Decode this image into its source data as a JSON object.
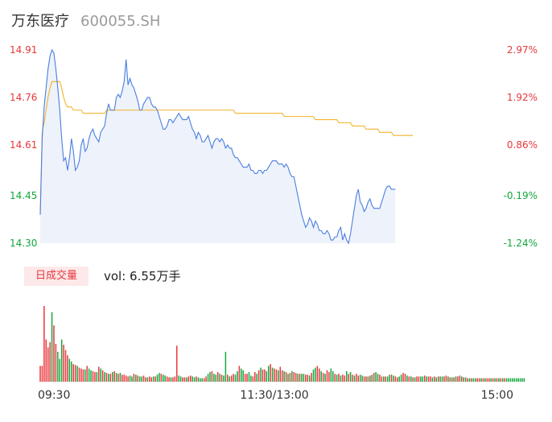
{
  "header": {
    "name": "万东医疗",
    "code": "600055.SH"
  },
  "colors": {
    "up": "#e8383d",
    "down": "#14a83b",
    "neutral": "#9a9a9a",
    "price_line": "#4a7fe0",
    "avg_line": "#f2b42b",
    "area_fill": "#eef2fb"
  },
  "volume_panel": {
    "badge": "日成交量",
    "summary": "vol: 6.55万手"
  },
  "chart_data": {
    "type": "line",
    "title": "",
    "prev_close": 14.5,
    "y_ticks": [
      "14.91",
      "14.76",
      "14.61",
      "14.45",
      "14.30"
    ],
    "y_right_ticks": [
      "2.97%",
      "1.92%",
      "0.86%",
      "-0.19%",
      "-1.24%"
    ],
    "ylim": [
      14.3,
      14.91
    ],
    "x_ticks": [
      "09:30",
      "11:30/13:00",
      "15:00"
    ],
    "x_tick_index": [
      0,
      120,
      240
    ],
    "n_minutes": 241,
    "series": [
      {
        "id": "price",
        "values": [
          14.39,
          14.63,
          14.73,
          14.79,
          14.85,
          14.89,
          14.91,
          14.9,
          14.85,
          14.79,
          14.72,
          14.63,
          14.56,
          14.57,
          14.53,
          14.57,
          14.63,
          14.59,
          14.53,
          14.54,
          14.56,
          14.61,
          14.63,
          14.59,
          14.6,
          14.63,
          14.65,
          14.66,
          14.64,
          14.63,
          14.62,
          14.65,
          14.66,
          14.67,
          14.71,
          14.74,
          14.72,
          14.72,
          14.72,
          14.76,
          14.77,
          14.76,
          14.78,
          14.81,
          14.88,
          14.8,
          14.82,
          14.8,
          14.79,
          14.77,
          14.75,
          14.72,
          14.72,
          14.74,
          14.75,
          14.76,
          14.76,
          14.74,
          14.73,
          14.73,
          14.72,
          14.7,
          14.68,
          14.66,
          14.66,
          14.67,
          14.69,
          14.69,
          14.68,
          14.69,
          14.7,
          14.71,
          14.7,
          14.69,
          14.69,
          14.69,
          14.7,
          14.68,
          14.66,
          14.65,
          14.63,
          14.65,
          14.64,
          14.62,
          14.62,
          14.63,
          14.64,
          14.62,
          14.6,
          14.62,
          14.63,
          14.63,
          14.62,
          14.63,
          14.62,
          14.6,
          14.61,
          14.6,
          14.6,
          14.58,
          14.57,
          14.57,
          14.56,
          14.55,
          14.54,
          14.54,
          14.54,
          14.55,
          14.53,
          14.53,
          14.52,
          14.52,
          14.53,
          14.53,
          14.52,
          14.53,
          14.53,
          14.54,
          14.55,
          14.56,
          14.56,
          14.56,
          14.55,
          14.55,
          14.55,
          14.54,
          14.55,
          14.54,
          14.52,
          14.51,
          14.51,
          14.48,
          14.45,
          14.42,
          14.39,
          14.37,
          14.35,
          14.36,
          14.38,
          14.37,
          14.35,
          14.37,
          14.36,
          14.34,
          14.34,
          14.33,
          14.33,
          14.34,
          14.33,
          14.31,
          14.31,
          14.32,
          14.32,
          14.34,
          14.35,
          14.31,
          14.33,
          14.31,
          14.3,
          14.33,
          14.37,
          14.41,
          14.45,
          14.47,
          14.43,
          14.42,
          14.4,
          14.41,
          14.43,
          14.44,
          14.42,
          14.41,
          14.41,
          14.41,
          14.41,
          14.43,
          14.45,
          14.47,
          14.48,
          14.48,
          14.47,
          14.47,
          14.47
        ],
        "color": "#4a7fe0"
      },
      {
        "id": "average",
        "values": [
          14.39,
          14.65,
          14.68,
          14.72,
          14.76,
          14.79,
          14.81,
          14.81,
          14.81,
          14.81,
          14.81,
          14.79,
          14.76,
          14.74,
          14.73,
          14.73,
          14.73,
          14.72,
          14.72,
          14.72,
          14.72,
          14.72,
          14.71,
          14.71,
          14.71,
          14.71,
          14.71,
          14.71,
          14.71,
          14.71,
          14.71,
          14.71,
          14.71,
          14.71,
          14.72,
          14.72,
          14.72,
          14.72,
          14.72,
          14.72,
          14.72,
          14.72,
          14.72,
          14.72,
          14.72,
          14.72,
          14.72,
          14.72,
          14.72,
          14.72,
          14.72,
          14.72,
          14.72,
          14.72,
          14.72,
          14.72,
          14.72,
          14.72,
          14.72,
          14.72,
          14.72,
          14.72,
          14.72,
          14.72,
          14.72,
          14.72,
          14.72,
          14.72,
          14.72,
          14.72,
          14.72,
          14.72,
          14.72,
          14.72,
          14.72,
          14.72,
          14.72,
          14.72,
          14.72,
          14.72,
          14.72,
          14.72,
          14.72,
          14.72,
          14.72,
          14.72,
          14.72,
          14.72,
          14.72,
          14.72,
          14.72,
          14.72,
          14.72,
          14.72,
          14.72,
          14.72,
          14.72,
          14.72,
          14.72,
          14.72,
          14.71,
          14.71,
          14.71,
          14.71,
          14.71,
          14.71,
          14.71,
          14.71,
          14.71,
          14.71,
          14.71,
          14.71,
          14.71,
          14.71,
          14.71,
          14.71,
          14.71,
          14.71,
          14.71,
          14.71,
          14.71,
          14.71,
          14.71,
          14.71,
          14.71,
          14.7,
          14.7,
          14.7,
          14.7,
          14.7,
          14.7,
          14.7,
          14.7,
          14.7,
          14.7,
          14.7,
          14.7,
          14.7,
          14.7,
          14.7,
          14.7,
          14.69,
          14.69,
          14.69,
          14.69,
          14.69,
          14.69,
          14.69,
          14.69,
          14.69,
          14.69,
          14.69,
          14.69,
          14.68,
          14.68,
          14.68,
          14.68,
          14.68,
          14.68,
          14.68,
          14.67,
          14.67,
          14.67,
          14.67,
          14.67,
          14.67,
          14.67,
          14.66,
          14.66,
          14.66,
          14.66,
          14.66,
          14.66,
          14.66,
          14.65,
          14.65,
          14.65,
          14.65,
          14.65,
          14.65,
          14.65,
          14.64,
          14.64,
          14.64,
          14.64,
          14.64,
          14.64,
          14.64,
          14.64,
          14.64,
          14.64,
          14.64
        ],
        "color": "#f2b42b"
      }
    ],
    "volume_unit": "手",
    "volume": {
      "values": [
        180,
        180,
        860,
        480,
        390,
        450,
        790,
        640,
        430,
        340,
        260,
        480,
        420,
        360,
        300,
        260,
        230,
        200,
        190,
        180,
        160,
        150,
        140,
        140,
        180,
        150,
        130,
        120,
        110,
        110,
        170,
        150,
        130,
        110,
        100,
        90,
        90,
        110,
        120,
        100,
        90,
        100,
        80,
        80,
        70,
        60,
        70,
        60,
        90,
        80,
        70,
        60,
        60,
        70,
        50,
        50,
        60,
        50,
        60,
        60,
        80,
        100,
        90,
        80,
        70,
        60,
        50,
        50,
        50,
        60,
        410,
        70,
        60,
        50,
        50,
        50,
        60,
        70,
        60,
        50,
        60,
        50,
        40,
        40,
        40,
        60,
        90,
        110,
        120,
        90,
        80,
        110,
        90,
        80,
        70,
        340,
        80,
        60,
        70,
        90,
        80,
        120,
        180,
        150,
        130,
        90,
        90,
        110,
        70,
        60,
        110,
        90,
        130,
        160,
        140,
        140,
        120,
        180,
        200,
        160,
        150,
        140,
        130,
        170,
        130,
        120,
        110,
        90,
        100,
        120,
        110,
        100,
        90,
        90,
        90,
        90,
        80,
        80,
        70,
        100,
        140,
        160,
        180,
        150,
        120,
        100,
        90,
        130,
        110,
        150,
        120,
        90,
        80,
        90,
        70,
        80,
        70,
        120,
        90,
        110,
        80,
        70,
        90,
        70,
        80,
        70,
        60,
        60,
        60,
        70,
        80,
        100,
        110,
        90,
        80,
        60,
        60,
        60,
        60,
        80,
        80,
        70,
        60,
        50,
        60,
        80,
        100,
        90,
        70,
        60,
        60,
        50,
        50,
        60,
        60,
        60,
        60,
        70,
        60,
        60,
        60,
        50,
        60,
        50,
        60,
        60,
        60,
        60,
        70,
        60,
        50,
        50,
        50,
        60,
        60,
        70,
        60,
        50,
        50,
        40,
        40,
        40,
        40,
        40,
        40,
        40,
        40,
        40,
        40,
        40,
        40,
        40,
        40,
        40,
        40,
        40,
        40,
        40,
        40,
        40,
        40,
        40,
        40,
        40,
        40,
        40,
        40,
        40,
        40
      ],
      "dir": [
        "u",
        "u",
        "u",
        "u",
        "u",
        "u",
        "d",
        "u",
        "u",
        "d",
        "d",
        "d",
        "u",
        "u",
        "u",
        "d",
        "d",
        "u",
        "u",
        "d",
        "u",
        "u",
        "u",
        "d",
        "u",
        "d",
        "d",
        "u",
        "u",
        "d",
        "u",
        "d",
        "u",
        "d",
        "u",
        "d",
        "u",
        "d",
        "u",
        "d",
        "u",
        "d",
        "u",
        "u",
        "u",
        "u",
        "d",
        "d",
        "u",
        "d",
        "u",
        "d",
        "d",
        "u",
        "u",
        "d",
        "u",
        "u",
        "d",
        "u",
        "d",
        "d",
        "u",
        "d",
        "d",
        "u",
        "u",
        "d",
        "u",
        "u",
        "u",
        "d",
        "d",
        "u",
        "u",
        "d",
        "u",
        "u",
        "d",
        "d",
        "u",
        "d",
        "d",
        "d",
        "u",
        "u",
        "d",
        "d",
        "u",
        "d",
        "d",
        "u",
        "d",
        "u",
        "d",
        "d",
        "u",
        "d",
        "u",
        "u",
        "d",
        "d",
        "u",
        "d",
        "d",
        "u",
        "u",
        "d",
        "d",
        "u",
        "u",
        "d",
        "u",
        "d",
        "u",
        "u",
        "d",
        "d",
        "u",
        "d",
        "u",
        "u",
        "d",
        "u",
        "u",
        "d",
        "u",
        "d",
        "u",
        "d",
        "u",
        "u",
        "d",
        "u",
        "d",
        "d",
        "u",
        "u",
        "d",
        "u",
        "d",
        "d",
        "u",
        "u",
        "d",
        "u",
        "d",
        "u",
        "u",
        "d",
        "d",
        "u",
        "d",
        "u",
        "d",
        "u",
        "u",
        "d",
        "u",
        "d",
        "u",
        "d",
        "u",
        "u",
        "d",
        "d",
        "u",
        "u",
        "d",
        "u",
        "d",
        "u",
        "d",
        "d",
        "u",
        "u",
        "d",
        "u",
        "d",
        "d",
        "u",
        "d",
        "u",
        "u",
        "d",
        "d",
        "u",
        "u",
        "d",
        "u",
        "d",
        "u",
        "d",
        "u",
        "u",
        "d",
        "d",
        "u",
        "d",
        "u",
        "u",
        "d",
        "u",
        "d",
        "u",
        "d",
        "d",
        "u",
        "u",
        "d",
        "u",
        "d",
        "u",
        "d",
        "u",
        "u",
        "d",
        "u",
        "d",
        "u",
        "d",
        "u",
        "d",
        "d",
        "u",
        "u",
        "d",
        "u",
        "d",
        "u",
        "u",
        "d",
        "u",
        "d",
        "u",
        "d",
        "u",
        "d",
        "u",
        "d",
        "d"
      ]
    }
  }
}
